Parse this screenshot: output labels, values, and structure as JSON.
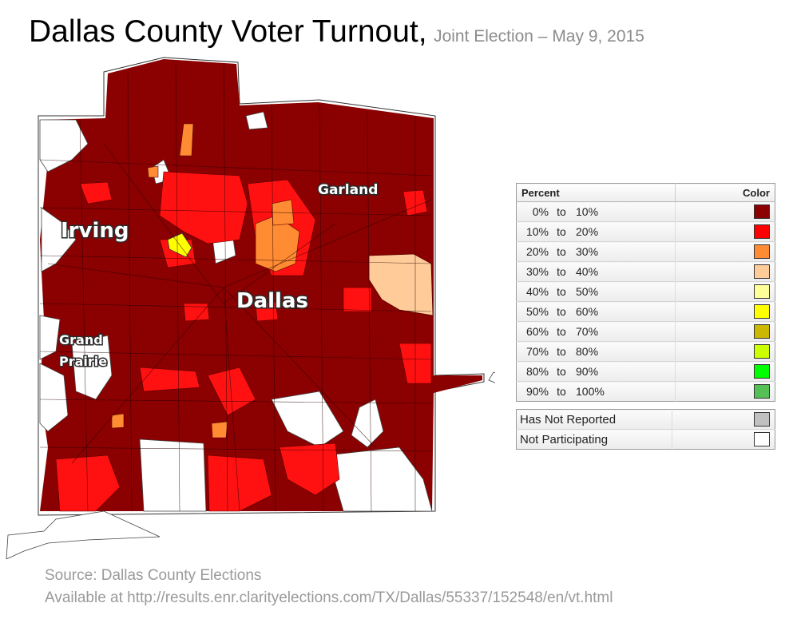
{
  "title": "Dallas County Voter Turnout,",
  "subtitle": "Joint Election – May 9, 2015",
  "map": {
    "cities": [
      "Garland",
      "Irving",
      "Dallas",
      "Grand",
      "Prairie"
    ]
  },
  "legend": {
    "header_percent": "Percent",
    "header_color": "Color",
    "bins": [
      {
        "lo": "0%",
        "to": "to",
        "hi": "10%",
        "color": "#8b0000"
      },
      {
        "lo": "10%",
        "to": "to",
        "hi": "20%",
        "color": "#ff0000"
      },
      {
        "lo": "20%",
        "to": "to",
        "hi": "30%",
        "color": "#ff8c33"
      },
      {
        "lo": "30%",
        "to": "to",
        "hi": "40%",
        "color": "#ffcc99"
      },
      {
        "lo": "40%",
        "to": "to",
        "hi": "50%",
        "color": "#ffff99"
      },
      {
        "lo": "50%",
        "to": "to",
        "hi": "60%",
        "color": "#ffff00"
      },
      {
        "lo": "60%",
        "to": "to",
        "hi": "70%",
        "color": "#ccb800"
      },
      {
        "lo": "70%",
        "to": "to",
        "hi": "80%",
        "color": "#ccff00"
      },
      {
        "lo": "80%",
        "to": "to",
        "hi": "90%",
        "color": "#00ff00"
      },
      {
        "lo": "90%",
        "to": "to",
        "hi": "100%",
        "color": "#55c055"
      }
    ],
    "extra": [
      {
        "label": "Has Not Reported",
        "color": "#c0c0c0"
      },
      {
        "label": "Not Participating",
        "color": "#ffffff"
      }
    ]
  },
  "source_line1": "Source: Dallas County Elections",
  "source_line2": "Available at http://results.enr.clarityelections.com/TX/Dallas/55337/152548/en/vt.html"
}
